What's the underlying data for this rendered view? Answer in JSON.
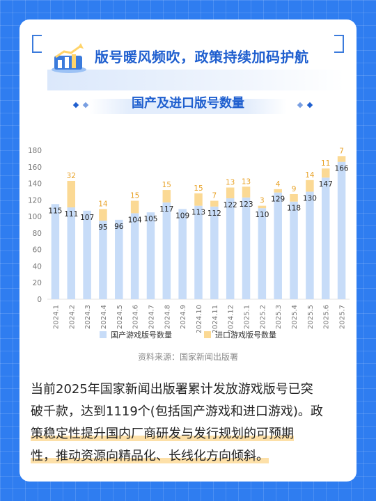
{
  "header": {
    "title": "版号暖风频吹，政策持续加码护航"
  },
  "chart_data": {
    "type": "bar",
    "stacked": true,
    "title": "国产及进口版号数量",
    "categories": [
      "2024.1",
      "2024.2",
      "2024.3",
      "2024.4",
      "2024.5",
      "2024.6",
      "2024.7",
      "2024.8",
      "2024.9",
      "2024.10",
      "2024.11",
      "2024.12",
      "2025.1",
      "2025.2",
      "2025.3",
      "2025.4",
      "2025.5",
      "2025.6",
      "2025.7"
    ],
    "series": [
      {
        "name": "国产游戏版号数量",
        "color": "#c7dcf8",
        "values": [
          115,
          111,
          107,
          95,
          96,
          104,
          105,
          117,
          109,
          113,
          112,
          122,
          123,
          110,
          129,
          118,
          130,
          147,
          166
        ]
      },
      {
        "name": "进口游戏版号数量",
        "color": "#fbd994",
        "values": [
          0,
          32,
          0,
          14,
          0,
          15,
          0,
          15,
          0,
          15,
          7,
          13,
          13,
          3,
          4,
          9,
          14,
          11,
          7
        ]
      }
    ],
    "yticks": [
      "0",
      "20",
      "40",
      "60",
      "80",
      "100",
      "120",
      "140",
      "160",
      "180"
    ],
    "ylim": [
      0,
      180
    ],
    "grid": false,
    "legend": "bottom"
  },
  "source": "资料来源：国家新闻出版署",
  "paragraph": {
    "line1": "当前2025年国家新闻出版署累计发放游戏版号已突",
    "line2": "破千款，达到1119个(包括国产游戏和进口游戏)。政",
    "line3": "策稳定性提升国内厂商研发与发行规划的可预期",
    "line4": "性，推动资源向精品化、长线化方向倾斜。"
  }
}
